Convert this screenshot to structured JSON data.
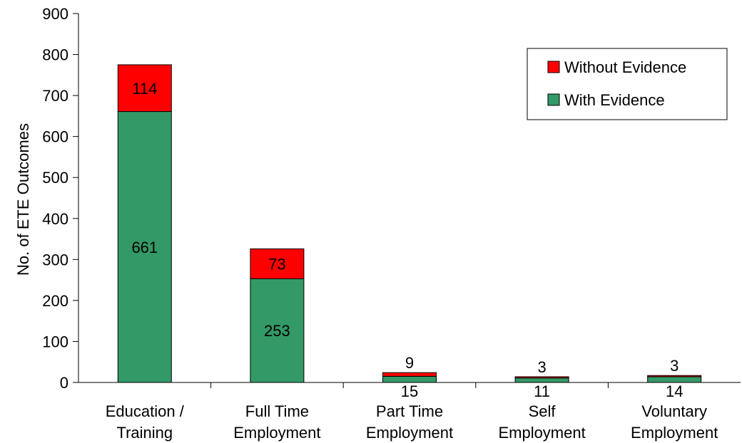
{
  "chart_data": {
    "type": "bar",
    "stacked": true,
    "ylabel": "No. of ETE Outcomes",
    "xlabel": "",
    "ylim": [
      0,
      900
    ],
    "yticks": [
      0,
      100,
      200,
      300,
      400,
      500,
      600,
      700,
      800,
      900
    ],
    "categories": [
      [
        "Education /",
        "Training"
      ],
      [
        "Full Time",
        "Employment"
      ],
      [
        "Part Time",
        "Employment"
      ],
      [
        "Self",
        "Employment"
      ],
      [
        "Voluntary",
        "Employment"
      ]
    ],
    "series": [
      {
        "name": "With Evidence",
        "color": "#339966",
        "values": [
          661,
          253,
          15,
          11,
          14
        ]
      },
      {
        "name": "Without Evidence",
        "color": "#ff0000",
        "values": [
          114,
          73,
          9,
          3,
          3
        ]
      }
    ],
    "legend": {
      "placement": "top-right",
      "items": [
        "Without Evidence",
        "With Evidence"
      ]
    },
    "grid": false
  }
}
